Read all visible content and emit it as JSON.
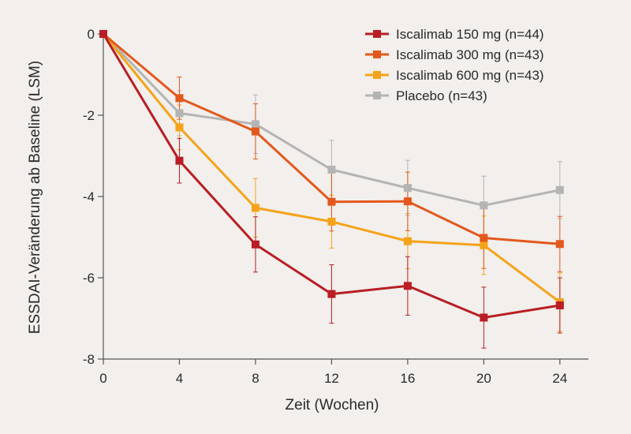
{
  "chart_data": {
    "type": "line",
    "title": "",
    "xlabel": "Zeit (Wochen)",
    "ylabel": "ESSDAI-Veränderung ab Baseline (LSM)",
    "x": [
      0,
      4,
      8,
      12,
      16,
      20,
      24
    ],
    "xticks": [
      "0",
      "4",
      "8",
      "12",
      "16",
      "20",
      "24"
    ],
    "yticks": [
      "0",
      "-2",
      "-4",
      "-6",
      "-8"
    ],
    "ytick_values": [
      0,
      -2,
      -4,
      -6,
      -8
    ],
    "xlim": [
      0,
      25.5
    ],
    "ylim": [
      -8,
      0
    ],
    "grid": false,
    "legend_position": "top-right",
    "series": [
      {
        "name": "Iscalimab 150 mg (n=44)",
        "color": "#b81e24",
        "values": [
          0,
          -3.12,
          -5.18,
          -6.4,
          -6.2,
          -6.98,
          -6.68
        ],
        "error": [
          null,
          0.55,
          0.68,
          0.72,
          0.72,
          0.75,
          0.68
        ]
      },
      {
        "name": "Iscalimab 300 mg (n=43)",
        "color": "#e3581c",
        "values": [
          0,
          -1.58,
          -2.4,
          -4.13,
          -4.12,
          -5.02,
          -5.17
        ],
        "error": [
          null,
          0.52,
          0.68,
          0.72,
          0.72,
          0.75,
          0.68
        ]
      },
      {
        "name": "Iscalimab 600 mg (n=43)",
        "color": "#f5a31a",
        "values": [
          0,
          -2.3,
          -4.28,
          -4.62,
          -5.1,
          -5.2,
          -6.6
        ],
        "error": [
          null,
          0.55,
          0.72,
          0.65,
          0.68,
          0.72,
          0.72
        ]
      },
      {
        "name": "Placebo (n=43)",
        "color": "#b4b4b4",
        "values": [
          0,
          -1.95,
          -2.22,
          -3.34,
          -3.79,
          -4.22,
          -3.84
        ],
        "error": [
          null,
          0.55,
          0.72,
          0.72,
          0.68,
          0.72,
          0.7
        ]
      }
    ]
  }
}
